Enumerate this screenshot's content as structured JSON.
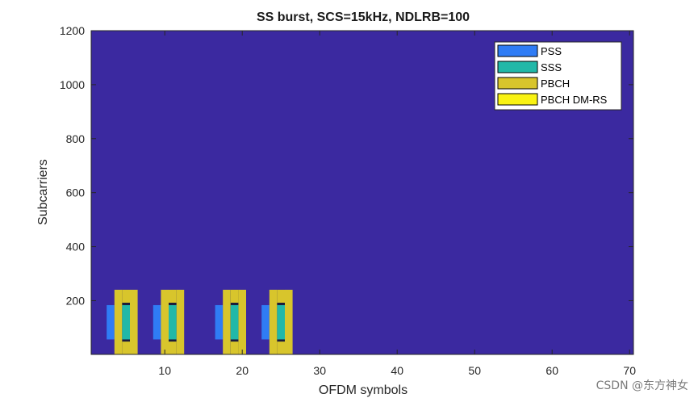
{
  "chart_data": {
    "type": "heatmap",
    "title": "SS burst, SCS=15kHz, NDLRB=100",
    "xlabel": "OFDM symbols",
    "ylabel": "Subcarriers",
    "xlim": [
      0.5,
      70.5
    ],
    "ylim": [
      1,
      1200
    ],
    "x_ticks": [
      10,
      20,
      30,
      40,
      50,
      60,
      70
    ],
    "y_ticks": [
      200,
      400,
      600,
      800,
      1000,
      1200
    ],
    "background_color": "#3b29a0",
    "legend_placement": "top-right",
    "legend": [
      {
        "name": "PSS",
        "color": "#2f7cf5"
      },
      {
        "name": "SSS",
        "color": "#21b8a8"
      },
      {
        "name": "PBCH",
        "color": "#d8c52c"
      },
      {
        "name": "PBCH DM-RS",
        "color": "#f9f312"
      }
    ],
    "ssb_start_symbols": [
      3,
      9,
      17,
      23
    ],
    "ssb_structure": {
      "PSS": {
        "symbol_offset": 0,
        "subcarriers": [
          57,
          183
        ]
      },
      "PBCH_symbol_offsets": [
        1,
        3
      ],
      "PBCH_subcarriers": [
        1,
        240
      ],
      "SSS": {
        "symbol_offset": 2,
        "subcarriers": [
          57,
          183
        ]
      },
      "PBCH_symbol2_subcarriers": [
        [
          1,
          48
        ],
        [
          193,
          240
        ]
      ]
    }
  },
  "watermark": "CSDN @东方神女"
}
